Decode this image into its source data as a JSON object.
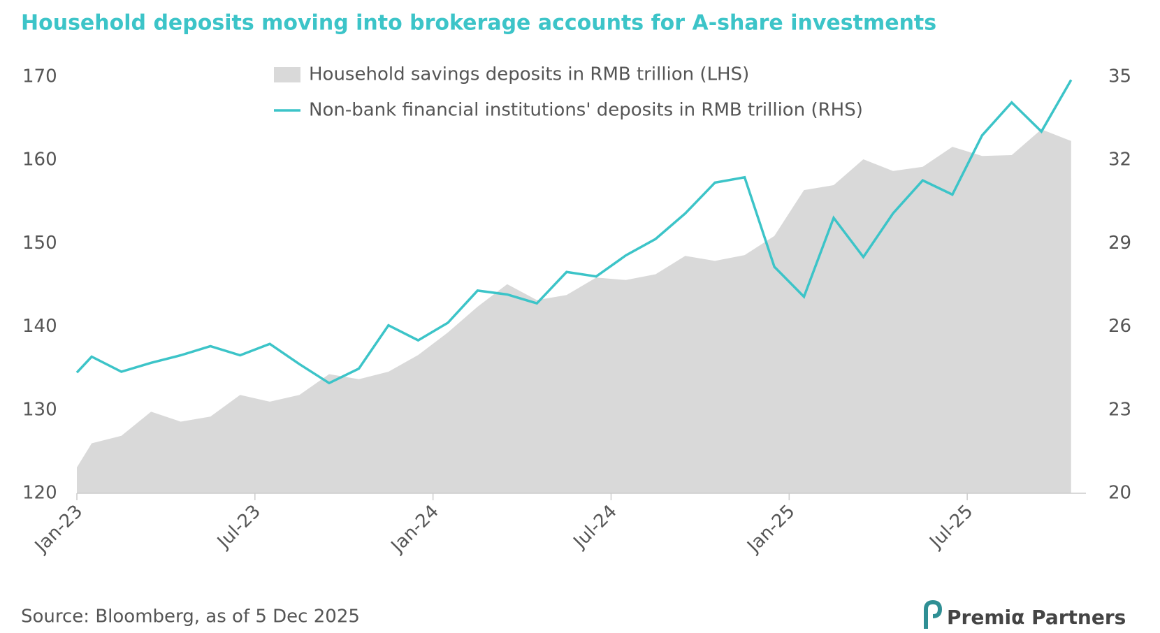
{
  "chart_data": {
    "type": "area-line",
    "title": "Household deposits moving into brokerage accounts for A-share investments",
    "source": "Source: Bloomberg, as of 5 Dec 2025",
    "logo": "Premiα Partners",
    "x": [
      0,
      0.5,
      1.5,
      2.5,
      3.5,
      4.5,
      5.5,
      6.5,
      7.5,
      8.5,
      9.5,
      10.5,
      11.5,
      12.5,
      13.5,
      14.5,
      15.5,
      16.5,
      17.5,
      18.5,
      19.5,
      20.5,
      21.5,
      22.5,
      23.5,
      24.5,
      25.5,
      26.5,
      27.5,
      28.5,
      29.5,
      30.5,
      31.5,
      32.5,
      33.5
    ],
    "xlim": [
      0,
      34
    ],
    "xticks": [
      {
        "value": 0,
        "label": "Jan-23"
      },
      {
        "value": 6,
        "label": "Jul-23"
      },
      {
        "value": 12,
        "label": "Jan-24"
      },
      {
        "value": 18,
        "label": "Jul-24"
      },
      {
        "value": 24,
        "label": "Jan-25"
      },
      {
        "value": 30,
        "label": "Jul-25"
      }
    ],
    "ylim": [
      120,
      170
    ],
    "yticks": [
      120,
      130,
      140,
      150,
      160,
      170
    ],
    "y2lim": [
      20,
      35
    ],
    "y2ticks": [
      20,
      23,
      26,
      29,
      32,
      35
    ],
    "legend": "top",
    "series": [
      {
        "name": "Household savings deposits in RMB trillion (LHS)",
        "type": "area",
        "color": "#d9d9d9",
        "values": [
          123.1,
          126.0,
          126.9,
          129.8,
          128.6,
          129.2,
          131.8,
          131.0,
          131.8,
          134.3,
          133.7,
          134.6,
          136.6,
          139.3,
          142.4,
          145.1,
          143.2,
          143.8,
          145.9,
          145.6,
          146.3,
          148.5,
          147.9,
          148.6,
          150.9,
          156.4,
          157.0,
          160.1,
          158.7,
          159.2,
          161.6,
          160.5,
          160.6,
          163.7,
          162.3
        ]
      },
      {
        "name": "Non-bank financial institutions' deposits in RMB trillion (RHS)",
        "type": "line",
        "axis": "y2",
        "color": "#3cc4c8",
        "values": [
          24.35,
          24.92,
          24.38,
          24.7,
          24.97,
          25.3,
          24.97,
          25.38,
          24.65,
          23.97,
          24.49,
          26.05,
          25.51,
          26.14,
          27.3,
          27.16,
          26.84,
          27.97,
          27.81,
          28.57,
          29.16,
          30.08,
          31.19,
          31.38,
          28.16,
          27.08,
          29.92,
          28.51,
          30.08,
          31.27,
          30.76,
          32.89,
          34.08,
          33.03,
          34.89
        ]
      }
    ]
  }
}
